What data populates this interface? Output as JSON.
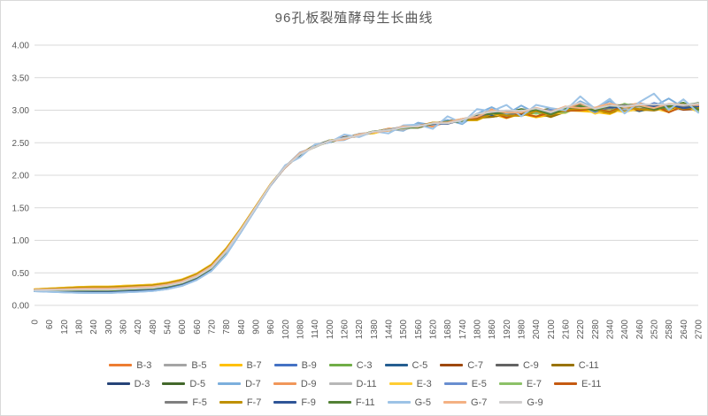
{
  "chart_data": {
    "type": "line",
    "title": "96孔板裂殖酵母生长曲线",
    "xlabel": "",
    "ylabel": "",
    "ylim": [
      0,
      4
    ],
    "ytick_step": 0.5,
    "ytick_labels": [
      "0.00",
      "0.50",
      "1.00",
      "1.50",
      "2.00",
      "2.50",
      "3.00",
      "3.50",
      "4.00"
    ],
    "grid": "horizontal",
    "legend_position": "bottom",
    "legend_rows": [
      9,
      9,
      7
    ],
    "x": [
      0,
      60,
      120,
      180,
      240,
      300,
      360,
      420,
      480,
      540,
      600,
      660,
      720,
      780,
      840,
      900,
      960,
      1020,
      1080,
      1140,
      1200,
      1260,
      1320,
      1380,
      1440,
      1500,
      1560,
      1620,
      1680,
      1740,
      1800,
      1860,
      1920,
      1980,
      2040,
      2100,
      2160,
      2220,
      2280,
      2340,
      2400,
      2460,
      2520,
      2580,
      2640,
      2700
    ],
    "base_values": [
      0.23,
      0.23,
      0.23,
      0.23,
      0.23,
      0.23,
      0.24,
      0.25,
      0.26,
      0.29,
      0.34,
      0.43,
      0.57,
      0.82,
      1.15,
      1.5,
      1.85,
      2.13,
      2.32,
      2.45,
      2.52,
      2.57,
      2.62,
      2.66,
      2.7,
      2.72,
      2.76,
      2.78,
      2.82,
      2.84,
      2.9,
      2.95,
      2.93,
      2.96,
      2.97,
      2.96,
      3.0,
      3.05,
      3.0,
      3.02,
      3.05,
      3.03,
      3.05,
      3.04,
      3.06,
      3.03
    ],
    "early_weight": [
      0.3,
      0.5,
      0.7,
      0.9,
      1,
      1,
      1,
      1,
      1,
      1,
      1,
      1,
      1,
      1,
      0.6,
      0.4,
      0.2,
      0,
      0,
      0,
      0,
      0,
      0,
      0,
      0,
      0,
      0,
      0,
      0,
      0,
      0,
      0,
      0,
      0,
      0,
      0,
      0,
      0,
      0,
      0,
      0,
      0,
      0,
      0,
      0,
      0
    ],
    "noise_ramp": [
      0,
      0,
      0,
      0,
      0,
      0,
      0,
      0,
      0,
      0,
      0,
      0,
      0,
      0,
      0,
      0,
      0,
      0.2,
      0.35,
      0.35,
      0.35,
      0.35,
      0.35,
      0.35,
      0.35,
      0.6,
      0.6,
      0.6,
      0.6,
      0.6,
      0.6,
      0.8,
      0.8,
      0.8,
      0.8,
      0.8,
      0.8,
      0.8,
      0.8,
      1,
      1,
      1,
      1,
      1,
      1,
      1
    ],
    "late_weight": [
      0,
      0,
      0,
      0,
      0,
      0,
      0,
      0,
      0,
      0,
      0,
      0,
      0,
      0,
      0,
      0,
      0,
      0,
      0,
      0,
      0,
      0,
      0,
      0,
      0,
      0,
      0,
      0,
      0,
      0,
      1,
      1,
      1,
      1,
      1,
      1,
      1,
      1,
      1,
      1,
      1,
      1,
      1,
      1,
      1,
      1
    ],
    "wiggle": [
      0.3,
      -0.6,
      0.8,
      -0.2,
      0.5,
      -0.9,
      0.1,
      0.7,
      -0.4,
      0.9,
      -0.7,
      0.2,
      -0.5,
      0.6,
      -0.1,
      0.8,
      -0.8,
      0.4,
      -0.3,
      1.0,
      -0.6,
      0.3,
      -1.0,
      0.5,
      0.2,
      -0.7,
      0.9,
      -0.4,
      0.6,
      -0.2,
      0.7,
      -0.9,
      0.4,
      0.1,
      -0.5,
      0.8,
      -0.3,
      0.6,
      -1.0,
      0.2,
      0.9,
      -0.6,
      0.3,
      -0.8,
      0.5,
      -0.1
    ],
    "series": [
      {
        "label": "B-3",
        "color": "#ED7D31",
        "early_offset": 0.03,
        "noise_amp": 0.05,
        "noise_shift": 0,
        "plateau_offset": 0
      },
      {
        "label": "B-5",
        "color": "#A5A5A5",
        "early_offset": 0.01,
        "noise_amp": 0.03,
        "noise_shift": 2,
        "plateau_offset": 0.01
      },
      {
        "label": "B-7",
        "color": "#FFC000",
        "early_offset": 0.06,
        "noise_amp": 0.05,
        "noise_shift": 4,
        "plateau_offset": -0.04
      },
      {
        "label": "B-9",
        "color": "#4472C4",
        "early_offset": -0.03,
        "noise_amp": 0.05,
        "noise_shift": 6,
        "plateau_offset": 0.02
      },
      {
        "label": "C-3",
        "color": "#70AD47",
        "early_offset": 0,
        "noise_amp": 0.05,
        "noise_shift": 8,
        "plateau_offset": 0.01
      },
      {
        "label": "C-5",
        "color": "#255E91",
        "early_offset": -0.03,
        "noise_amp": 0.04,
        "noise_shift": 10,
        "plateau_offset": -0.01
      },
      {
        "label": "C-7",
        "color": "#9E480E",
        "early_offset": 0.02,
        "noise_amp": 0.05,
        "noise_shift": 12,
        "plateau_offset": -0.02
      },
      {
        "label": "C-9",
        "color": "#636363",
        "early_offset": 0.01,
        "noise_amp": 0.04,
        "noise_shift": 14,
        "plateau_offset": 0.02
      },
      {
        "label": "C-11",
        "color": "#997300",
        "early_offset": 0.05,
        "noise_amp": 0.05,
        "noise_shift": 16,
        "plateau_offset": -0.03
      },
      {
        "label": "D-3",
        "color": "#264478",
        "early_offset": -0.03,
        "noise_amp": 0.04,
        "noise_shift": 18,
        "plateau_offset": 0.01
      },
      {
        "label": "D-5",
        "color": "#43682B",
        "early_offset": 0,
        "noise_amp": 0.05,
        "noise_shift": 20,
        "plateau_offset": 0.03
      },
      {
        "label": "D-7",
        "color": "#7CAFDD",
        "early_offset": -0.04,
        "noise_amp": 0.1,
        "noise_shift": 22,
        "plateau_offset": 0.04
      },
      {
        "label": "D-9",
        "color": "#F1975A",
        "early_offset": 0.03,
        "noise_amp": 0.06,
        "noise_shift": 24,
        "plateau_offset": 0.02
      },
      {
        "label": "D-11",
        "color": "#B7B7B7",
        "early_offset": 0.01,
        "noise_amp": 0.04,
        "noise_shift": 26,
        "plateau_offset": 0
      },
      {
        "label": "E-3",
        "color": "#FFCD33",
        "early_offset": 0.06,
        "noise_amp": 0.05,
        "noise_shift": 28,
        "plateau_offset": -0.03
      },
      {
        "label": "E-5",
        "color": "#698ED0",
        "early_offset": -0.02,
        "noise_amp": 0.05,
        "noise_shift": 30,
        "plateau_offset": 0.01
      },
      {
        "label": "E-7",
        "color": "#8CC168",
        "early_offset": 0,
        "noise_amp": 0.05,
        "noise_shift": 32,
        "plateau_offset": 0
      },
      {
        "label": "E-11",
        "color": "#C55A11",
        "early_offset": 0.03,
        "noise_amp": 0.06,
        "noise_shift": 34,
        "plateau_offset": -0.02
      },
      {
        "label": "F-5",
        "color": "#7F7F7F",
        "early_offset": 0.01,
        "noise_amp": 0.03,
        "noise_shift": 36,
        "plateau_offset": 0.01
      },
      {
        "label": "F-7",
        "color": "#BF9000",
        "early_offset": 0.05,
        "noise_amp": 0.05,
        "noise_shift": 38,
        "plateau_offset": -0.02
      },
      {
        "label": "F-9",
        "color": "#2F5597",
        "early_offset": -0.03,
        "noise_amp": 0.05,
        "noise_shift": 40,
        "plateau_offset": 0.02
      },
      {
        "label": "F-11",
        "color": "#538135",
        "early_offset": 0,
        "noise_amp": 0.05,
        "noise_shift": 42,
        "plateau_offset": 0.01
      },
      {
        "label": "G-5",
        "color": "#9DC3E6",
        "early_offset": -0.04,
        "noise_amp": 0.16,
        "noise_shift": 44,
        "plateau_offset": 0.06
      },
      {
        "label": "G-7",
        "color": "#F4B183",
        "early_offset": 0.03,
        "noise_amp": 0.06,
        "noise_shift": 1,
        "plateau_offset": 0.03
      },
      {
        "label": "G-9",
        "color": "#D0CECE",
        "early_offset": 0.01,
        "noise_amp": 0.04,
        "noise_shift": 3,
        "plateau_offset": 0.04
      }
    ]
  },
  "colors": {
    "background": "#FFFFFF",
    "border": "#D9D9D9",
    "gridline": "#D9D9D9",
    "axis_text": "#595959",
    "title_text": "#595959",
    "legend_text": "#595959"
  }
}
